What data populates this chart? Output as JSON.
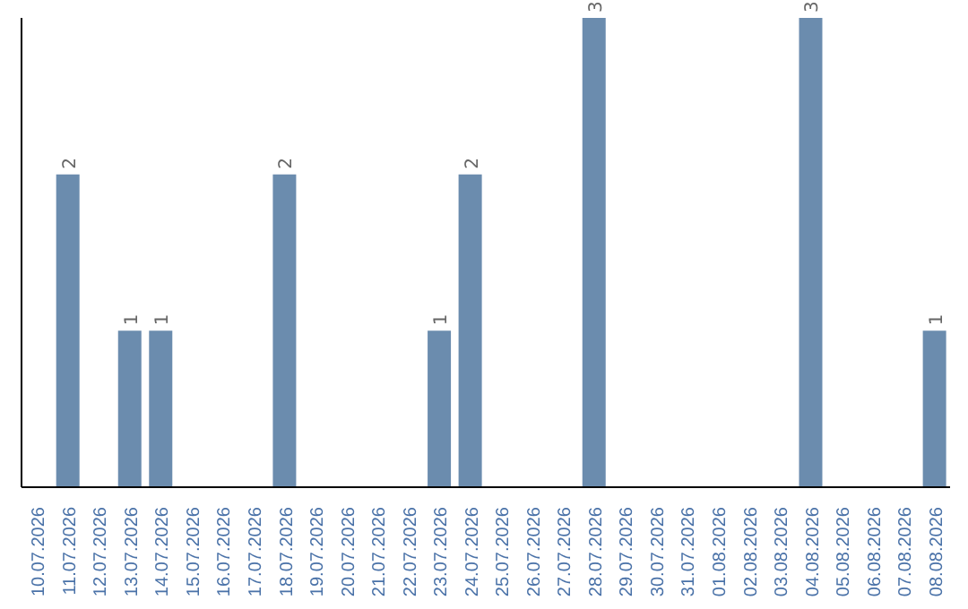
{
  "chart_data": {
    "type": "bar",
    "categories": [
      "10.07.2026",
      "11.07.2026",
      "12.07.2026",
      "13.07.2026",
      "14.07.2026",
      "15.07.2026",
      "16.07.2026",
      "17.07.2026",
      "18.07.2026",
      "19.07.2026",
      "20.07.2026",
      "21.07.2026",
      "22.07.2026",
      "23.07.2026",
      "24.07.2026",
      "25.07.2026",
      "26.07.2026",
      "27.07.2026",
      "28.07.2026",
      "29.07.2026",
      "30.07.2026",
      "31.07.2026",
      "01.08.2026",
      "02.08.2026",
      "03.08.2026",
      "04.08.2026",
      "05.08.2026",
      "06.08.2026",
      "07.08.2026",
      "08.08.2026"
    ],
    "values": [
      0,
      2,
      0,
      1,
      1,
      0,
      0,
      0,
      2,
      0,
      0,
      0,
      0,
      1,
      2,
      0,
      0,
      0,
      3,
      0,
      0,
      0,
      0,
      0,
      0,
      3,
      0,
      0,
      0,
      1
    ],
    "value_labels": [
      null,
      "2",
      null,
      "1",
      "1",
      null,
      null,
      null,
      "2",
      null,
      null,
      null,
      null,
      "1",
      "2",
      null,
      null,
      null,
      "3",
      null,
      null,
      null,
      null,
      null,
      null,
      "3",
      null,
      null,
      null,
      "1"
    ],
    "color": "#6b8cae",
    "ylim": [
      0,
      3
    ],
    "grid": false,
    "legend": false
  }
}
